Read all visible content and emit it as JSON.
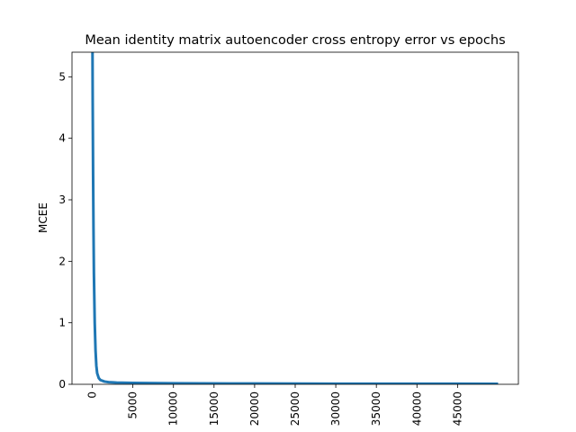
{
  "chart_data": {
    "type": "line",
    "title": "Mean identity matrix autoencoder cross entropy error vs epochs",
    "xlabel": "",
    "ylabel": "MCEE",
    "xlim": [
      -2500,
      52500
    ],
    "ylim": [
      0,
      5.4
    ],
    "xticks": [
      0,
      5000,
      10000,
      15000,
      20000,
      25000,
      30000,
      35000,
      40000,
      45000
    ],
    "yticks": [
      0,
      1,
      2,
      3,
      4,
      5
    ],
    "grid": false,
    "series": [
      {
        "name": "",
        "color": "#1f77b4",
        "x": [
          0,
          20,
          50,
          100,
          150,
          200,
          300,
          400,
          500,
          600,
          800,
          1000,
          1500,
          2000,
          3000,
          5000,
          10000,
          20000,
          30000,
          40000,
          50000
        ],
        "y": [
          6.5,
          5.6,
          4.6,
          3.4,
          2.5,
          1.8,
          1.0,
          0.55,
          0.3,
          0.18,
          0.1,
          0.07,
          0.045,
          0.035,
          0.028,
          0.022,
          0.016,
          0.012,
          0.01,
          0.009,
          0.008
        ]
      }
    ]
  }
}
